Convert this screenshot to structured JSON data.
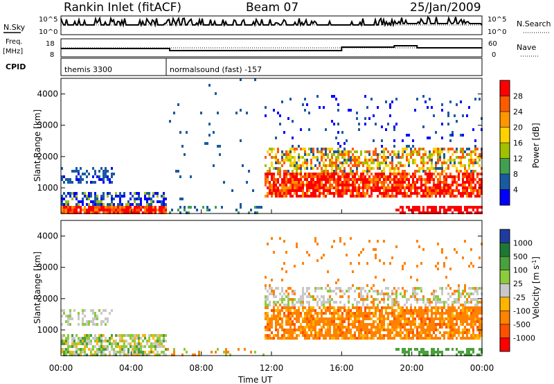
{
  "header": {
    "station": "Rankin Inlet (fitACF)",
    "beam": "Beam 07",
    "date": "25/Jan/2009"
  },
  "summary_panels": {
    "nsky_label": "N.Sky",
    "nsearch_label": "N.Search",
    "nsky_ticks_left": [
      "10^5",
      "10^0"
    ],
    "nsky_ticks_right": [
      "10^5",
      "10^0"
    ],
    "freq_label_top": "Freq.",
    "freq_label_bottom": "[MHz]",
    "freq_ticks": [
      "18",
      "8"
    ],
    "nave_label": "Nave",
    "nave_ticks": [
      "60",
      "0"
    ],
    "cpid_label": "CPID",
    "cpid_segments": [
      {
        "label": "themis 3300",
        "start_hour": 0,
        "end_hour": 6
      },
      {
        "label": "normalsound (fast) -157",
        "start_hour": 6,
        "end_hour": 24
      }
    ]
  },
  "chart_data": [
    {
      "type": "heatmap",
      "title": "",
      "xlabel": "Time UT",
      "ylabel": "Slant Range [km]",
      "xlim": [
        0,
        24
      ],
      "ylim": [
        180,
        4500
      ],
      "x_ticks": [
        "00:00",
        "04:00",
        "08:00",
        "12:00",
        "16:00",
        "20:00",
        "00:00"
      ],
      "y_ticks": [
        "1000",
        "2000",
        "3000",
        "4000"
      ],
      "colorbar": {
        "label": "Power [dB]",
        "ticks": [
          "28",
          "24",
          "20",
          "16",
          "12",
          "8",
          "4"
        ],
        "colors": [
          "#ff0000",
          "#ff5a00",
          "#ff9600",
          "#ffd200",
          "#a0c000",
          "#40a050",
          "#1a5aa0",
          "#0000ff"
        ]
      }
    },
    {
      "type": "heatmap",
      "title": "",
      "xlabel": "Time UT",
      "ylabel": "Slant Range [km]",
      "xlim": [
        0,
        24
      ],
      "ylim": [
        180,
        4500
      ],
      "x_ticks": [
        "00:00",
        "04:00",
        "08:00",
        "12:00",
        "16:00",
        "20:00",
        "00:00"
      ],
      "y_ticks": [
        "1000",
        "2000",
        "3000",
        "4000"
      ],
      "colorbar": {
        "label": "Velocity [m s^-1]",
        "ticks": [
          "1000",
          "500",
          "100",
          "25",
          "-25",
          "-100",
          "-500",
          "-1000"
        ],
        "colors": [
          "#1e3ca0",
          "#1e7832",
          "#4aa03c",
          "#8ccc3c",
          "#c8c8c8",
          "#ffb400",
          "#ff8200",
          "#ff5000",
          "#ff0000"
        ]
      }
    }
  ]
}
